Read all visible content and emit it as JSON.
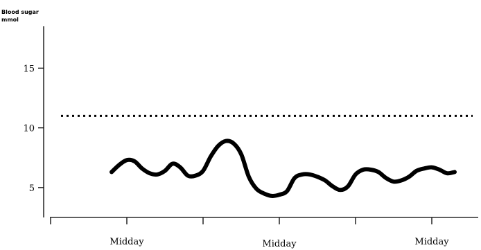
{
  "chart_data": {
    "type": "line",
    "title": "",
    "ylabel": [
      "Blood sugar",
      "mmol"
    ],
    "xlabel": "",
    "ylim": [
      2.5,
      18.5
    ],
    "xlim": [
      0,
      28
    ],
    "yticks": [
      5,
      10,
      15
    ],
    "x_major_ticks": [
      0,
      5,
      10,
      15,
      20,
      25
    ],
    "x_labels": [
      {
        "x": 5,
        "label": "Midday"
      },
      {
        "x": 15,
        "label": "Midday"
      },
      {
        "x": 25,
        "label": "Midday"
      }
    ],
    "reference_line": {
      "y": 11,
      "style": "dotted"
    },
    "series": [
      {
        "color": "#000000",
        "x": [
          4,
          4.5,
          5,
          5.5,
          6,
          6.5,
          7,
          7.5,
          8,
          8.5,
          9,
          9.5,
          10,
          10.5,
          11,
          11.5,
          12,
          12.5,
          13,
          13.5,
          14,
          14.5,
          15,
          15.5,
          16,
          16.5,
          17,
          17.5,
          18,
          18.5,
          19,
          19.5,
          20,
          20.5,
          21,
          21.5,
          22,
          22.5,
          23,
          23.5,
          24,
          24.5,
          25,
          25.5,
          26,
          26.5
        ],
        "y": [
          6.3,
          6.9,
          7.3,
          7.2,
          6.6,
          6.2,
          6.1,
          6.4,
          7.0,
          6.7,
          6.0,
          6.0,
          6.4,
          7.6,
          8.5,
          8.9,
          8.7,
          7.8,
          5.9,
          4.9,
          4.5,
          4.3,
          4.4,
          4.7,
          5.8,
          6.1,
          6.1,
          5.9,
          5.6,
          5.1,
          4.8,
          5.1,
          6.1,
          6.5,
          6.5,
          6.3,
          5.8,
          5.5,
          5.6,
          5.9,
          6.4,
          6.6,
          6.7,
          6.5,
          6.2,
          6.3
        ]
      }
    ]
  }
}
